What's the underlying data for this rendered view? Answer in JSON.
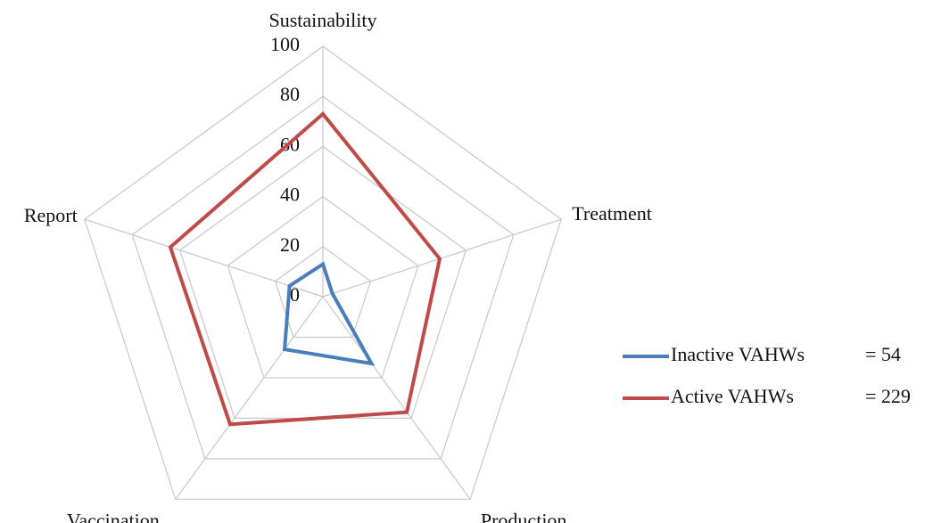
{
  "chart_data": {
    "type": "radar",
    "categories": [
      "Sustainability",
      "Treatment",
      "Production",
      "Vaccination",
      "Report"
    ],
    "rlim": [
      0,
      100
    ],
    "rticks": [
      0,
      20,
      40,
      60,
      80,
      100
    ],
    "grid": true,
    "legend": "right",
    "series": [
      {
        "name": "Inactive VAHWs",
        "note": "= 54",
        "color": "#4a7ebb",
        "values": [
          13,
          4,
          33,
          26,
          14
        ]
      },
      {
        "name": "Active VAHWs",
        "note": "= 229",
        "color": "#be4b48",
        "values": [
          73,
          49,
          57,
          63,
          64
        ]
      }
    ]
  }
}
